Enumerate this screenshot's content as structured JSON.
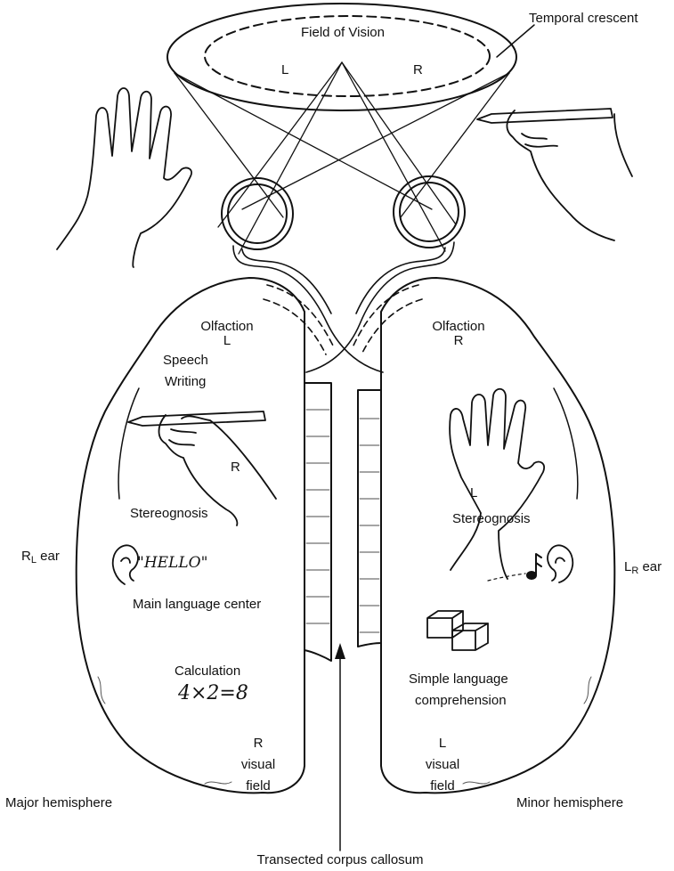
{
  "labels": {
    "field_of_vision": "Field of Vision",
    "vision_l": "L",
    "vision_r": "R",
    "temporal_crescent": "Temporal crescent",
    "olfaction_left": "Olfaction",
    "olfaction_left_side": "L",
    "olfaction_right": "Olfaction",
    "olfaction_right_side": "R",
    "speech": "Speech",
    "writing": "Writing",
    "left_hand_side": "R",
    "stereognosis_left": "Stereognosis",
    "right_hand_side": "L",
    "stereognosis_right": "Stereognosis",
    "left_ear_main": "R",
    "left_ear_sub": "L",
    "left_ear_suffix": " ear",
    "right_ear_main": "L",
    "right_ear_sub": "R",
    "right_ear_suffix": " ear",
    "hello": "\"HELLO\"",
    "main_language_center": "Main language center",
    "calculation": "Calculation",
    "equation": "4×2=8",
    "simple_language_1": "Simple language",
    "simple_language_2": "comprehension",
    "left_visual_r": "R",
    "left_visual_visual": "visual",
    "left_visual_field": "field",
    "right_visual_l": "L",
    "right_visual_visual": "visual",
    "right_visual_field": "field",
    "major_hemisphere": "Major hemisphere",
    "minor_hemisphere": "Minor hemisphere",
    "corpus_callosum": "Transected corpus callosum"
  }
}
